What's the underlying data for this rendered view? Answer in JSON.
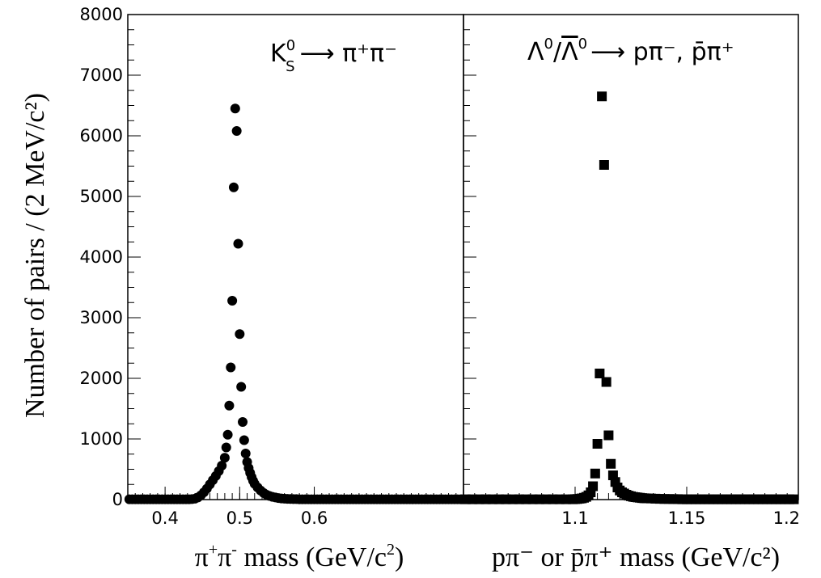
{
  "chart_data": [
    {
      "type": "scatter",
      "panel": "left",
      "marker": "circle",
      "annotation": {
        "main": "K",
        "sub": "S",
        "sup": "0",
        "rest": "⟶ π⁺π⁻"
      },
      "xlabel": {
        "pre": "π",
        "sup1": "+",
        "mid": "π",
        "sup2": "-",
        "post": " mass (GeV/c",
        "sup3": "2",
        "end": ")"
      },
      "ylabel": "Number of pairs / (2 MeV/c²)",
      "xlim": [
        0.35,
        0.8
      ],
      "ylim": [
        0,
        8000
      ],
      "xticks": [
        "0.4",
        "0.5",
        "0.6"
      ],
      "xtick_values": [
        0.4,
        0.5,
        0.6
      ],
      "yticks": [
        "0",
        "1000",
        "2000",
        "3000",
        "4000",
        "5000",
        "6000",
        "7000",
        "8000"
      ],
      "ytick_values": [
        0,
        1000,
        2000,
        3000,
        4000,
        5000,
        6000,
        7000,
        8000
      ],
      "grid": false,
      "x": [
        0.352,
        0.356,
        0.36,
        0.364,
        0.368,
        0.372,
        0.376,
        0.38,
        0.384,
        0.388,
        0.392,
        0.396,
        0.4,
        0.404,
        0.408,
        0.412,
        0.416,
        0.42,
        0.424,
        0.428,
        0.432,
        0.436,
        0.44,
        0.444,
        0.448,
        0.452,
        0.456,
        0.46,
        0.464,
        0.468,
        0.472,
        0.476,
        0.48,
        0.482,
        0.484,
        0.486,
        0.488,
        0.49,
        0.492,
        0.494,
        0.496,
        0.498,
        0.5,
        0.502,
        0.504,
        0.506,
        0.508,
        0.51,
        0.512,
        0.514,
        0.516,
        0.518,
        0.52,
        0.524,
        0.528,
        0.532,
        0.536,
        0.54,
        0.544,
        0.548,
        0.552,
        0.556,
        0.56,
        0.564,
        0.568,
        0.572,
        0.576,
        0.58,
        0.584,
        0.588,
        0.592,
        0.596,
        0.6,
        0.604,
        0.608,
        0.612,
        0.616,
        0.62,
        0.624,
        0.628,
        0.632,
        0.636,
        0.64,
        0.644,
        0.648,
        0.652,
        0.656,
        0.66,
        0.664,
        0.668,
        0.672,
        0.676,
        0.68,
        0.684,
        0.688,
        0.692,
        0.696,
        0.7,
        0.704,
        0.708,
        0.712,
        0.716,
        0.72,
        0.724,
        0.728,
        0.732,
        0.736,
        0.74,
        0.744,
        0.748,
        0.752,
        0.756,
        0.76,
        0.764,
        0.768,
        0.772,
        0.776,
        0.78,
        0.784,
        0.788,
        0.792,
        0.796
      ],
      "y": [
        5,
        5,
        5,
        5,
        5,
        5,
        5,
        5,
        5,
        5,
        5,
        5,
        5,
        5,
        5,
        5,
        5,
        5,
        5,
        5,
        5,
        8,
        15,
        35,
        70,
        120,
        180,
        250,
        320,
        390,
        470,
        560,
        690,
        860,
        1070,
        1550,
        2180,
        3280,
        5150,
        6450,
        6080,
        4220,
        2730,
        1860,
        1280,
        980,
        760,
        620,
        520,
        440,
        370,
        310,
        260,
        200,
        150,
        110,
        80,
        60,
        45,
        35,
        25,
        18,
        15,
        12,
        10,
        8,
        8,
        5,
        5,
        5,
        5,
        5,
        5,
        5,
        5,
        5,
        5,
        5,
        5,
        5,
        5,
        5,
        5,
        5,
        5,
        5,
        5,
        5,
        5,
        5,
        5,
        5,
        5,
        5,
        5,
        5,
        5,
        5,
        5,
        5,
        5,
        5,
        5,
        5,
        5,
        5,
        5,
        5,
        5,
        5,
        5,
        5,
        5,
        5,
        5,
        5,
        5,
        5,
        5,
        5,
        5,
        5
      ]
    },
    {
      "type": "scatter",
      "panel": "right",
      "marker": "square",
      "annotation": {
        "lam": "Λ",
        "sup0a": "0",
        "slash": "/",
        "lambar": "Λ",
        "sup0b": "0",
        "rest": "⟶ pπ⁻, p̄π⁺"
      },
      "xlabel": "pπ⁻ or p̄π⁺ mass (GeV/c²)",
      "xlim": [
        1.05,
        1.2
      ],
      "ylim": [
        0,
        8000
      ],
      "xticks": [
        "1.1",
        "1.15",
        "1.2"
      ],
      "xtick_values": [
        1.1,
        1.15,
        1.2
      ],
      "grid": false,
      "x": [
        1.051,
        1.054,
        1.057,
        1.06,
        1.063,
        1.066,
        1.069,
        1.072,
        1.075,
        1.078,
        1.081,
        1.084,
        1.087,
        1.09,
        1.093,
        1.096,
        1.099,
        1.1,
        1.101,
        1.102,
        1.103,
        1.104,
        1.105,
        1.106,
        1.107,
        1.108,
        1.109,
        1.11,
        1.111,
        1.112,
        1.113,
        1.114,
        1.115,
        1.116,
        1.117,
        1.118,
        1.119,
        1.12,
        1.121,
        1.122,
        1.123,
        1.124,
        1.125,
        1.126,
        1.127,
        1.128,
        1.129,
        1.13,
        1.131,
        1.132,
        1.134,
        1.136,
        1.138,
        1.14,
        1.142,
        1.144,
        1.146,
        1.148,
        1.15,
        1.152,
        1.154,
        1.156,
        1.158,
        1.16,
        1.162,
        1.164,
        1.166,
        1.168,
        1.17,
        1.172,
        1.174,
        1.176,
        1.178,
        1.18,
        1.182,
        1.184,
        1.186,
        1.188,
        1.19,
        1.192,
        1.194,
        1.196,
        1.198
      ],
      "y": [
        5,
        5,
        5,
        5,
        5,
        5,
        5,
        5,
        5,
        5,
        5,
        5,
        5,
        5,
        5,
        5,
        5,
        8,
        10,
        15,
        20,
        30,
        45,
        70,
        120,
        220,
        430,
        920,
        2080,
        6650,
        5520,
        1940,
        1060,
        590,
        400,
        290,
        200,
        150,
        120,
        100,
        80,
        65,
        55,
        45,
        40,
        35,
        30,
        25,
        22,
        20,
        18,
        15,
        12,
        10,
        10,
        8,
        8,
        5,
        5,
        5,
        5,
        5,
        5,
        5,
        5,
        5,
        5,
        5,
        5,
        5,
        5,
        5,
        5,
        5,
        5,
        5,
        5,
        5,
        5,
        5,
        5,
        5,
        5
      ]
    }
  ]
}
